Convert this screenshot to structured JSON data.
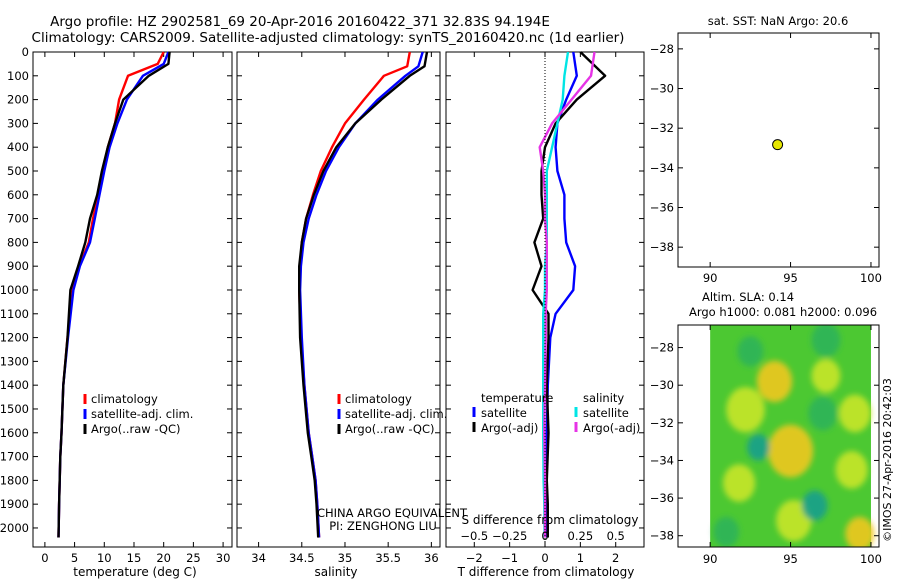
{
  "header": {
    "line1": "Argo profile: HZ 2902581_69 20-Apr-2016 20160422_371 32.83S 94.194E",
    "line2": "Climatology: CARS2009. Satellite-adjusted climatology: synTS_20160420.nc (1d earlier)"
  },
  "colors": {
    "climatology": "#ff0000",
    "satellite": "#0000ff",
    "argo": "#000000",
    "sat_s": "#00e5e5",
    "argo_s": "#e633e6",
    "marker": "#e6e600"
  },
  "chart_data": [
    {
      "id": "temp",
      "type": "line",
      "xlabel": "temperature (deg C)",
      "ylabel": "",
      "xlim": [
        -2,
        31.5
      ],
      "ylim": [
        0,
        2080
      ],
      "y_inverted": true,
      "xticks": [
        0,
        5,
        10,
        15,
        20,
        25,
        30
      ],
      "xtick_labels": [
        "0",
        "5",
        "10",
        "15",
        "20",
        "25",
        "30"
      ],
      "yticks": [
        0,
        100,
        200,
        300,
        400,
        500,
        600,
        700,
        800,
        900,
        1000,
        1100,
        1200,
        1300,
        1400,
        1500,
        1600,
        1700,
        1800,
        1900,
        2000
      ],
      "ytick_labels": [
        "0",
        "100",
        "200",
        "300",
        "400",
        "500",
        "600",
        "700",
        "800",
        "900",
        "1000",
        "1100",
        "1200",
        "1300",
        "1400",
        "1500",
        "1600",
        "1700",
        "1800",
        "1900",
        "2000"
      ],
      "legend": {
        "placement": "lower-center",
        "entries": [
          "climatology",
          "satellite-adj. clim.",
          "Argo(..raw -QC)"
        ]
      },
      "series": [
        {
          "name": "climatology",
          "color": "#ff0000",
          "x": [
            20.0,
            19.0,
            14.0,
            12.5,
            11.8,
            10.6,
            9.8,
            9.0,
            8.1,
            7.4,
            5.8,
            4.7,
            3.8,
            3.1,
            2.8,
            2.6,
            2.5,
            2.4,
            2.3
          ],
          "y": [
            0,
            50,
            100,
            200,
            300,
            400,
            500,
            600,
            700,
            800,
            900,
            1000,
            1200,
            1400,
            1600,
            1700,
            1800,
            1900,
            2040
          ]
        },
        {
          "name": "satellite-adj. clim.",
          "color": "#0000ff",
          "x": [
            20.8,
            20.0,
            16.5,
            13.8,
            12.2,
            10.9,
            10.0,
            9.2,
            8.4,
            7.6,
            5.9,
            4.8,
            3.9,
            3.1,
            2.8,
            2.6,
            2.5,
            2.4,
            2.3
          ],
          "y": [
            0,
            50,
            100,
            200,
            300,
            400,
            500,
            600,
            700,
            800,
            900,
            1000,
            1200,
            1400,
            1600,
            1700,
            1800,
            1900,
            2040
          ]
        },
        {
          "name": "Argo(..raw -QC)",
          "color": "#000000",
          "x": [
            21.0,
            20.8,
            17.5,
            13.2,
            11.8,
            10.6,
            9.6,
            8.8,
            7.6,
            6.8,
            5.6,
            4.3,
            3.8,
            3.1,
            2.8,
            2.6,
            2.5,
            2.4,
            2.3
          ],
          "y": [
            0,
            50,
            100,
            200,
            300,
            400,
            500,
            600,
            700,
            800,
            900,
            1000,
            1200,
            1400,
            1600,
            1700,
            1800,
            1900,
            2040
          ]
        }
      ]
    },
    {
      "id": "salinity",
      "type": "line",
      "xlabel": "salinity",
      "ylabel": "",
      "xlim": [
        33.75,
        36.1
      ],
      "ylim": [
        0,
        2080
      ],
      "y_inverted": true,
      "xticks": [
        34,
        34.5,
        35,
        35.5,
        36
      ],
      "xtick_labels": [
        "34",
        "34.5",
        "35",
        "35.5",
        "36"
      ],
      "legend": {
        "placement": "lower-center",
        "entries": [
          "climatology",
          "satellite-adj. clim.",
          "Argo(..raw -QC)"
        ]
      },
      "annotation": [
        "CHINA ARGO EQUIVALENT",
        "PI: ZENGHONG LIU"
      ],
      "series": [
        {
          "name": "climatology",
          "color": "#ff0000",
          "x": [
            35.75,
            35.72,
            35.45,
            35.22,
            35.0,
            34.85,
            34.72,
            34.63,
            34.55,
            34.5,
            34.48,
            34.47,
            34.49,
            34.53,
            34.58,
            34.62,
            34.66,
            34.68,
            34.7
          ],
          "y": [
            0,
            60,
            100,
            200,
            300,
            400,
            500,
            600,
            700,
            800,
            900,
            1000,
            1200,
            1400,
            1600,
            1700,
            1800,
            1900,
            2040
          ]
        },
        {
          "name": "satellite-adj. clim.",
          "color": "#0000ff",
          "x": [
            35.9,
            35.85,
            35.7,
            35.38,
            35.12,
            34.93,
            34.78,
            34.67,
            34.58,
            34.52,
            34.49,
            34.48,
            34.5,
            34.53,
            34.58,
            34.62,
            34.66,
            34.68,
            34.7
          ],
          "y": [
            0,
            60,
            100,
            200,
            300,
            400,
            500,
            600,
            700,
            800,
            900,
            1000,
            1200,
            1400,
            1600,
            1700,
            1800,
            1900,
            2040
          ]
        },
        {
          "name": "Argo(..raw -QC)",
          "color": "#000000",
          "x": [
            35.95,
            35.92,
            35.75,
            35.42,
            35.12,
            34.9,
            34.75,
            34.64,
            34.55,
            34.5,
            34.47,
            34.47,
            34.48,
            34.52,
            34.57,
            34.61,
            34.65,
            34.67,
            34.69
          ],
          "y": [
            0,
            60,
            100,
            200,
            300,
            400,
            500,
            600,
            700,
            800,
            900,
            1000,
            1200,
            1400,
            1600,
            1700,
            1800,
            1900,
            2040
          ]
        }
      ]
    },
    {
      "id": "difference",
      "type": "line",
      "xlabel": "T difference from climatology",
      "xlabel_top": "S difference from climatology",
      "xlim": [
        -2.8,
        2.8
      ],
      "ylim": [
        0,
        2080
      ],
      "y_inverted": true,
      "xticks": [
        -2,
        -1,
        0,
        1,
        2
      ],
      "xtick_labels": [
        "−2",
        "−1",
        "0",
        "1",
        "2"
      ],
      "xticks_top": [
        -0.5,
        -0.25,
        0,
        0.25,
        0.5
      ],
      "xtick_labels_top": [
        "−0.5",
        "−0.25",
        "0",
        "0.25",
        "0.5"
      ],
      "legend": {
        "placement": "lower-center",
        "entries": [
          "temperature",
          "satellite",
          "Argo(-adj)",
          "salinity",
          "satellite",
          "Argo(-adj)"
        ]
      },
      "series": [
        {
          "name": "temperature satellite",
          "color": "#0000ff",
          "x": [
            0.8,
            0.9,
            0.6,
            0.35,
            0.3,
            0.35,
            0.55,
            0.55,
            0.6,
            0.85,
            0.8,
            0.3,
            0.15,
            0.08,
            0.05,
            0.05,
            0.04,
            0.03
          ],
          "y": [
            0,
            100,
            200,
            300,
            400,
            500,
            600,
            700,
            800,
            900,
            1000,
            1100,
            1200,
            1400,
            1600,
            1800,
            1900,
            2040
          ]
        },
        {
          "name": "temperature Argo(-adj)",
          "color": "#000000",
          "x": [
            1.0,
            1.7,
            0.9,
            0.3,
            0.0,
            -0.1,
            -0.1,
            -0.05,
            -0.3,
            -0.1,
            -0.35,
            0.1,
            0.1,
            0.05,
            0.1,
            0.05,
            0.08,
            0.08
          ],
          "y": [
            0,
            100,
            200,
            300,
            400,
            500,
            600,
            700,
            800,
            900,
            1000,
            1100,
            1200,
            1400,
            1600,
            1800,
            1900,
            2040
          ]
        },
        {
          "name": "salinity satellite",
          "color": "#00e5e5",
          "x": [
            0.65,
            0.55,
            0.5,
            0.35,
            0.2,
            0.05,
            0.05,
            0.05,
            0.05,
            0.0,
            0.0,
            -0.05,
            -0.05,
            -0.05,
            -0.05,
            -0.04,
            -0.02,
            -0.01
          ],
          "y": [
            0,
            100,
            200,
            300,
            400,
            500,
            600,
            700,
            800,
            900,
            1000,
            1100,
            1200,
            1400,
            1600,
            1800,
            1900,
            2040
          ]
        },
        {
          "name": "salinity Argo(-adj)",
          "color": "#e633e6",
          "x": [
            1.4,
            1.3,
            0.75,
            0.2,
            -0.15,
            -0.05,
            0.0,
            0.0,
            0.05,
            0.05,
            0.05,
            0.02,
            0.02,
            0.0,
            -0.02,
            0.0,
            0.0,
            0.0
          ],
          "y": [
            0,
            100,
            200,
            300,
            400,
            500,
            600,
            700,
            800,
            900,
            1000,
            1100,
            1200,
            1400,
            1600,
            1800,
            1900,
            2040
          ]
        }
      ]
    },
    {
      "id": "location",
      "type": "scatter",
      "title": "sat. SST: NaN Argo: 20.6",
      "xlim": [
        88,
        100.5
      ],
      "ylim": [
        -39,
        -27.2
      ],
      "xticks": [
        90,
        95,
        100
      ],
      "xtick_labels": [
        "90",
        "95",
        "100"
      ],
      "yticks": [
        -28,
        -30,
        -32,
        -34,
        -36,
        -38
      ],
      "ytick_labels": [
        "−28",
        "−30",
        "−32",
        "−34",
        "−36",
        "−38"
      ],
      "points": [
        {
          "x": 94.194,
          "y": -32.83
        }
      ]
    },
    {
      "id": "sla",
      "type": "heatmap",
      "title_line1": "Altim. SLA: 0.14",
      "title_line2": "Argo h1000: 0.081 h2000: 0.096",
      "xlim": [
        88,
        100.5
      ],
      "ylim": [
        -38.6,
        -26.8
      ],
      "xticks": [
        90,
        95,
        100
      ],
      "xtick_labels": [
        "90",
        "95",
        "100"
      ],
      "yticks": [
        -28,
        -30,
        -32,
        -34,
        -36,
        -38
      ],
      "ytick_labels": [
        "−28",
        "−30",
        "−32",
        "−34",
        "−36",
        "−38"
      ],
      "data_extent_x": [
        90,
        100
      ],
      "blobs": [
        {
          "x": 94.0,
          "y": -29.8,
          "r": 1.1,
          "v": 0.85
        },
        {
          "x": 97.2,
          "y": -29.5,
          "r": 0.9,
          "v": 0.7
        },
        {
          "x": 92.2,
          "y": -31.3,
          "r": 1.2,
          "v": 0.6
        },
        {
          "x": 99.0,
          "y": -31.5,
          "r": 1.0,
          "v": 0.55
        },
        {
          "x": 95.0,
          "y": -33.5,
          "r": 1.4,
          "v": 0.8
        },
        {
          "x": 98.8,
          "y": -34.5,
          "r": 1.0,
          "v": 0.5
        },
        {
          "x": 91.8,
          "y": -35.2,
          "r": 1.0,
          "v": 0.55
        },
        {
          "x": 99.3,
          "y": -37.9,
          "r": 0.9,
          "v": 0.85
        },
        {
          "x": 95.2,
          "y": -37.2,
          "r": 1.1,
          "v": 0.6
        },
        {
          "x": 93.0,
          "y": -33.3,
          "r": 0.7,
          "v": -0.6
        },
        {
          "x": 97.0,
          "y": -31.5,
          "r": 0.9,
          "v": -0.5
        },
        {
          "x": 96.5,
          "y": -36.4,
          "r": 0.8,
          "v": -0.6
        },
        {
          "x": 91.0,
          "y": -37.8,
          "r": 0.8,
          "v": -0.4
        },
        {
          "x": 97.2,
          "y": -27.6,
          "r": 0.9,
          "v": -0.4
        },
        {
          "x": 92.5,
          "y": -28.2,
          "r": 0.8,
          "v": -0.3
        }
      ]
    }
  ],
  "watermark": "©IMOS 27-Apr-2016 20:42:03"
}
